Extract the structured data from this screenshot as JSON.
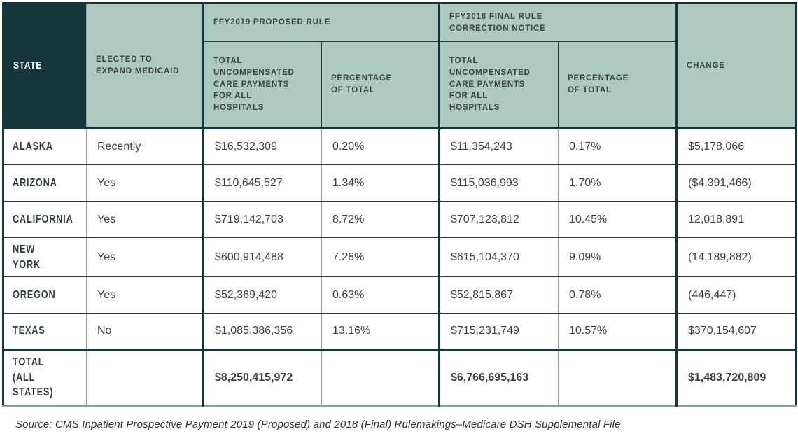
{
  "chart_data": {
    "type": "table",
    "header": {
      "state": "STATE",
      "elected": "ELECTED TO\nEXPAND MEDICAID",
      "group_2019": "FFY2019 PROPOSED RULE",
      "group_2018": "FFY2018 FINAL RULE\nCORRECTION NOTICE",
      "total_uc": "TOTAL\nUNCOMPENSATED\nCARE PAYMENTS\nFOR ALL\nHOSPITALS",
      "pct": "PERCENTAGE\nOF TOTAL",
      "change": "CHANGE"
    },
    "rows": [
      {
        "state": "ALASKA",
        "elected": "Recently",
        "uc2019": "$16,532,309",
        "pct2019": "0.20%",
        "uc2018": "$11,354,243",
        "pct2018": "0.17%",
        "change": "$5,178,066"
      },
      {
        "state": "ARIZONA",
        "elected": "Yes",
        "uc2019": "$110,645,527",
        "pct2019": "1.34%",
        "uc2018": "$115,036,993",
        "pct2018": "1.70%",
        "change": "($4,391,466)"
      },
      {
        "state": "CALIFORNIA",
        "elected": "Yes",
        "uc2019": "$719,142,703",
        "pct2019": "8.72%",
        "uc2018": "$707,123,812",
        "pct2018": "10.45%",
        "change": "12,018,891"
      },
      {
        "state": "NEW YORK",
        "elected": "Yes",
        "uc2019": "$600,914,488",
        "pct2019": "7.28%",
        "uc2018": "$615,104,370",
        "pct2018": "9.09%",
        "change": "(14,189,882)"
      },
      {
        "state": "OREGON",
        "elected": "Yes",
        "uc2019": "$52,369,420",
        "pct2019": "0.63%",
        "uc2018": "$52,815,867",
        "pct2018": "0.78%",
        "change": "(446,447)"
      },
      {
        "state": "TEXAS",
        "elected": "No",
        "uc2019": "$1,085,386,356",
        "pct2019": "13.16%",
        "uc2018": "$715,231,749",
        "pct2018": "10.57%",
        "change": "$370,154,607"
      }
    ],
    "total": {
      "label": "TOTAL\n(ALL STATES)",
      "elected": "",
      "uc2019": "$8,250,415,972",
      "pct2019": "",
      "uc2018": "$6,766,695,163",
      "pct2018": "",
      "change": "$1,483,720,809"
    },
    "source": "Source: CMS Inpatient Prospective Payment 2019 (Proposed) and 2018 (Final) Rulemakings–Medicare DSH Supplemental File"
  },
  "colors": {
    "dark_teal": "#14363a",
    "sage_green": "#aecac0",
    "grid_gray": "#8aa39c",
    "text": "#3d4242"
  }
}
